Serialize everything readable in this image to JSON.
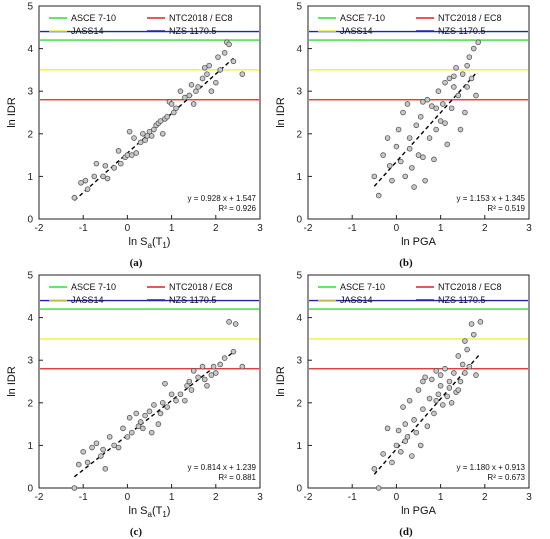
{
  "chart_data": [
    {
      "type": "scatter",
      "caption": "(a)",
      "xlabel": "ln S_a(T_1)",
      "xlabel_main": "ln S",
      "xlabel_sub1": "a",
      "xlabel_mid": "(T",
      "xlabel_sub2": "1",
      "xlabel_end": ")",
      "ylabel": "ln IDR",
      "xlim": [
        -2,
        3
      ],
      "ylim": [
        0,
        5
      ],
      "xticks": [
        "-2",
        "-1",
        "0",
        "1",
        "2",
        "3"
      ],
      "yticks": [
        "0",
        "1",
        "2",
        "3",
        "4",
        "5"
      ],
      "thresholds": [
        {
          "name": "ASCE 7-10",
          "value": 4.2,
          "color": "#33dd33"
        },
        {
          "name": "NTC2018 / EC8",
          "value": 2.8,
          "color": "#dd2222"
        },
        {
          "name": "JASS14",
          "value": 3.5,
          "color": "#eeee33"
        },
        {
          "name": "NZS 1170.5",
          "value": 4.4,
          "color": "#2222aa"
        }
      ],
      "equation": "y = 0.928 x + 1.547",
      "r2": "R² = 0.926",
      "fit": {
        "slope": 0.928,
        "intercept": 1.547,
        "x_range": [
          -1.2,
          2.4
        ]
      },
      "points": [
        [
          -1.2,
          0.5
        ],
        [
          -1.05,
          0.85
        ],
        [
          -0.95,
          0.9
        ],
        [
          -0.9,
          0.7
        ],
        [
          -0.75,
          1.0
        ],
        [
          -0.7,
          1.3
        ],
        [
          -0.55,
          1.0
        ],
        [
          -0.5,
          1.25
        ],
        [
          -0.45,
          0.95
        ],
        [
          -0.3,
          1.2
        ],
        [
          -0.2,
          1.6
        ],
        [
          -0.15,
          1.3
        ],
        [
          -0.05,
          1.45
        ],
        [
          0.0,
          1.5
        ],
        [
          0.05,
          2.05
        ],
        [
          0.1,
          1.5
        ],
        [
          0.15,
          1.9
        ],
        [
          0.2,
          1.55
        ],
        [
          0.3,
          1.8
        ],
        [
          0.35,
          2.0
        ],
        [
          0.4,
          1.85
        ],
        [
          0.45,
          1.95
        ],
        [
          0.5,
          2.05
        ],
        [
          0.55,
          1.95
        ],
        [
          0.6,
          2.1
        ],
        [
          0.65,
          2.2
        ],
        [
          0.7,
          2.25
        ],
        [
          0.75,
          2.3
        ],
        [
          0.8,
          2.0
        ],
        [
          0.85,
          2.35
        ],
        [
          0.9,
          2.4
        ],
        [
          0.95,
          2.75
        ],
        [
          1.0,
          2.7
        ],
        [
          1.05,
          2.5
        ],
        [
          1.1,
          2.6
        ],
        [
          1.2,
          3.0
        ],
        [
          1.3,
          2.85
        ],
        [
          1.4,
          2.9
        ],
        [
          1.45,
          3.15
        ],
        [
          1.5,
          2.7
        ],
        [
          1.55,
          3.0
        ],
        [
          1.6,
          3.1
        ],
        [
          1.7,
          3.3
        ],
        [
          1.75,
          3.55
        ],
        [
          1.8,
          3.4
        ],
        [
          1.85,
          3.6
        ],
        [
          1.9,
          3.0
        ],
        [
          2.0,
          3.2
        ],
        [
          2.05,
          3.8
        ],
        [
          2.1,
          3.5
        ],
        [
          2.2,
          3.9
        ],
        [
          2.25,
          4.15
        ],
        [
          2.3,
          4.1
        ],
        [
          2.4,
          3.7
        ],
        [
          2.6,
          3.4
        ]
      ]
    },
    {
      "type": "scatter",
      "caption": "(b)",
      "xlabel": "ln PGA",
      "ylabel": "ln IDR",
      "xlim": [
        -2,
        3
      ],
      "ylim": [
        0,
        5
      ],
      "xticks": [
        "-2",
        "-1",
        "0",
        "1",
        "2",
        "3"
      ],
      "yticks": [
        "0",
        "1",
        "2",
        "3",
        "4",
        "5"
      ],
      "thresholds": [
        {
          "name": "ASCE 7-10",
          "value": 4.2,
          "color": "#33dd33"
        },
        {
          "name": "NTC2018 / EC8",
          "value": 2.8,
          "color": "#dd2222"
        },
        {
          "name": "JASS14",
          "value": 3.5,
          "color": "#eeee33"
        },
        {
          "name": "NZS 1170.5",
          "value": 4.4,
          "color": "#2222aa"
        }
      ],
      "equation": "y = 1.153 x + 1.345",
      "r2": "R² = 0.519",
      "fit": {
        "slope": 1.153,
        "intercept": 1.345,
        "x_range": [
          -0.5,
          1.8
        ]
      },
      "points": [
        [
          -0.5,
          1.0
        ],
        [
          -0.4,
          0.55
        ],
        [
          -0.3,
          1.5
        ],
        [
          -0.2,
          1.9
        ],
        [
          -0.15,
          1.25
        ],
        [
          -0.1,
          0.9
        ],
        [
          0.0,
          1.7
        ],
        [
          0.05,
          2.1
        ],
        [
          0.1,
          1.35
        ],
        [
          0.15,
          2.5
        ],
        [
          0.2,
          1.0
        ],
        [
          0.25,
          2.7
        ],
        [
          0.3,
          1.9
        ],
        [
          0.35,
          1.2
        ],
        [
          0.4,
          0.75
        ],
        [
          0.45,
          2.2
        ],
        [
          0.5,
          1.5
        ],
        [
          0.55,
          2.4
        ],
        [
          0.6,
          1.45
        ],
        [
          0.65,
          0.9
        ],
        [
          0.7,
          2.8
        ],
        [
          0.75,
          1.9
        ],
        [
          0.8,
          2.65
        ],
        [
          0.85,
          1.4
        ],
        [
          0.9,
          2.1
        ],
        [
          0.95,
          3.0
        ],
        [
          1.0,
          2.3
        ],
        [
          1.05,
          2.7
        ],
        [
          1.1,
          3.2
        ],
        [
          1.15,
          1.75
        ],
        [
          1.2,
          3.3
        ],
        [
          1.25,
          2.6
        ],
        [
          1.3,
          3.1
        ],
        [
          1.35,
          3.55
        ],
        [
          1.4,
          2.9
        ],
        [
          1.45,
          2.1
        ],
        [
          1.5,
          3.4
        ],
        [
          1.55,
          2.5
        ],
        [
          1.6,
          3.6
        ],
        [
          1.65,
          3.8
        ],
        [
          1.7,
          3.3
        ],
        [
          1.75,
          4.0
        ],
        [
          1.8,
          2.9
        ],
        [
          1.85,
          4.15
        ],
        [
          1.3,
          3.35
        ],
        [
          0.9,
          2.6
        ],
        [
          1.1,
          2.25
        ],
        [
          0.6,
          2.75
        ],
        [
          1.6,
          3.1
        ],
        [
          0.3,
          1.65
        ]
      ]
    },
    {
      "type": "scatter",
      "caption": "(c)",
      "xlabel": "ln S_a(T_1)",
      "xlabel_main": "ln S",
      "xlabel_sub1": "a",
      "xlabel_mid": "(T",
      "xlabel_sub2": "1",
      "xlabel_end": ")",
      "ylabel": "ln IDR",
      "xlim": [
        -2,
        3
      ],
      "ylim": [
        0,
        5
      ],
      "xticks": [
        "-2",
        "-1",
        "0",
        "1",
        "2",
        "3"
      ],
      "yticks": [
        "0",
        "1",
        "2",
        "3",
        "4",
        "5"
      ],
      "thresholds": [
        {
          "name": "ASCE 7-10",
          "value": 4.2,
          "color": "#33dd33"
        },
        {
          "name": "NTC2018 / EC8",
          "value": 2.8,
          "color": "#dd2222"
        },
        {
          "name": "JASS14",
          "value": 3.5,
          "color": "#eeee33"
        },
        {
          "name": "NZS 1170.5",
          "value": 4.4,
          "color": "#2222aa"
        }
      ],
      "equation": "y = 0.814 x + 1.239",
      "r2": "R² = 0.881",
      "fit": {
        "slope": 0.814,
        "intercept": 1.239,
        "x_range": [
          -1.2,
          2.4
        ]
      },
      "points": [
        [
          -1.2,
          0.0
        ],
        [
          -1.1,
          0.55
        ],
        [
          -1.0,
          0.85
        ],
        [
          -0.9,
          0.6
        ],
        [
          -0.8,
          0.95
        ],
        [
          -0.7,
          1.05
        ],
        [
          -0.6,
          0.75
        ],
        [
          -0.5,
          0.45
        ],
        [
          -0.4,
          1.2
        ],
        [
          -0.3,
          1.0
        ],
        [
          -0.2,
          0.95
        ],
        [
          -0.1,
          1.4
        ],
        [
          0.0,
          1.2
        ],
        [
          0.05,
          1.65
        ],
        [
          0.1,
          1.3
        ],
        [
          0.2,
          1.75
        ],
        [
          0.3,
          1.55
        ],
        [
          0.35,
          1.4
        ],
        [
          0.4,
          1.7
        ],
        [
          0.5,
          1.8
        ],
        [
          0.55,
          1.3
        ],
        [
          0.6,
          1.95
        ],
        [
          0.7,
          1.5
        ],
        [
          0.75,
          1.75
        ],
        [
          0.8,
          2.0
        ],
        [
          0.85,
          2.45
        ],
        [
          0.9,
          1.9
        ],
        [
          1.0,
          2.2
        ],
        [
          1.1,
          2.05
        ],
        [
          1.2,
          2.2
        ],
        [
          1.3,
          2.05
        ],
        [
          1.35,
          2.4
        ],
        [
          1.4,
          2.5
        ],
        [
          1.5,
          2.75
        ],
        [
          1.6,
          2.6
        ],
        [
          1.7,
          2.85
        ],
        [
          1.75,
          2.55
        ],
        [
          1.8,
          2.4
        ],
        [
          1.9,
          2.65
        ],
        [
          1.95,
          2.85
        ],
        [
          2.0,
          2.7
        ],
        [
          2.1,
          2.9
        ],
        [
          2.2,
          3.05
        ],
        [
          2.3,
          3.9
        ],
        [
          2.4,
          3.2
        ],
        [
          2.45,
          3.85
        ],
        [
          2.6,
          2.85
        ],
        [
          1.45,
          2.3
        ],
        [
          0.25,
          1.45
        ],
        [
          -0.55,
          0.9
        ]
      ]
    },
    {
      "type": "scatter",
      "caption": "(d)",
      "xlabel": "ln PGA",
      "ylabel": "ln IDR",
      "xlim": [
        -2,
        3
      ],
      "ylim": [
        0,
        5
      ],
      "xticks": [
        "-2",
        "-1",
        "0",
        "1",
        "2",
        "3"
      ],
      "yticks": [
        "0",
        "1",
        "2",
        "3",
        "4",
        "5"
      ],
      "thresholds": [
        {
          "name": "ASCE 7-10",
          "value": 4.2,
          "color": "#33dd33"
        },
        {
          "name": "NTC2018 / EC8",
          "value": 2.8,
          "color": "#dd2222"
        },
        {
          "name": "JASS14",
          "value": 3.5,
          "color": "#eeee33"
        },
        {
          "name": "NZS 1170.5",
          "value": 4.4,
          "color": "#2222aa"
        }
      ],
      "equation": "y = 1.180 x + 0.913",
      "r2": "R² = 0.673",
      "fit": {
        "slope": 1.18,
        "intercept": 0.913,
        "x_range": [
          -0.5,
          1.9
        ]
      },
      "points": [
        [
          -0.5,
          0.45
        ],
        [
          -0.4,
          0.0
        ],
        [
          -0.3,
          0.8
        ],
        [
          -0.2,
          1.4
        ],
        [
          -0.1,
          0.6
        ],
        [
          0.0,
          1.0
        ],
        [
          0.05,
          1.35
        ],
        [
          0.1,
          0.85
        ],
        [
          0.15,
          1.9
        ],
        [
          0.2,
          1.5
        ],
        [
          0.25,
          1.2
        ],
        [
          0.3,
          2.05
        ],
        [
          0.35,
          0.75
        ],
        [
          0.4,
          1.6
        ],
        [
          0.45,
          1.3
        ],
        [
          0.5,
          2.3
        ],
        [
          0.55,
          1.0
        ],
        [
          0.6,
          1.85
        ],
        [
          0.65,
          2.6
        ],
        [
          0.7,
          1.45
        ],
        [
          0.75,
          2.1
        ],
        [
          0.8,
          2.55
        ],
        [
          0.85,
          1.75
        ],
        [
          0.9,
          2.75
        ],
        [
          0.95,
          2.2
        ],
        [
          1.0,
          2.4
        ],
        [
          1.05,
          1.95
        ],
        [
          1.1,
          2.8
        ],
        [
          1.15,
          2.15
        ],
        [
          1.2,
          2.5
        ],
        [
          1.25,
          2.0
        ],
        [
          1.3,
          2.7
        ],
        [
          1.35,
          2.25
        ],
        [
          1.4,
          3.1
        ],
        [
          1.45,
          2.5
        ],
        [
          1.5,
          2.9
        ],
        [
          1.55,
          2.7
        ],
        [
          1.6,
          3.25
        ],
        [
          1.65,
          2.85
        ],
        [
          1.7,
          3.85
        ],
        [
          1.75,
          3.6
        ],
        [
          1.8,
          2.65
        ],
        [
          1.9,
          3.9
        ],
        [
          1.2,
          2.35
        ],
        [
          0.9,
          2.05
        ],
        [
          0.6,
          2.5
        ],
        [
          1.0,
          2.65
        ],
        [
          1.4,
          2.3
        ],
        [
          0.2,
          1.1
        ],
        [
          1.55,
          3.45
        ]
      ]
    }
  ]
}
